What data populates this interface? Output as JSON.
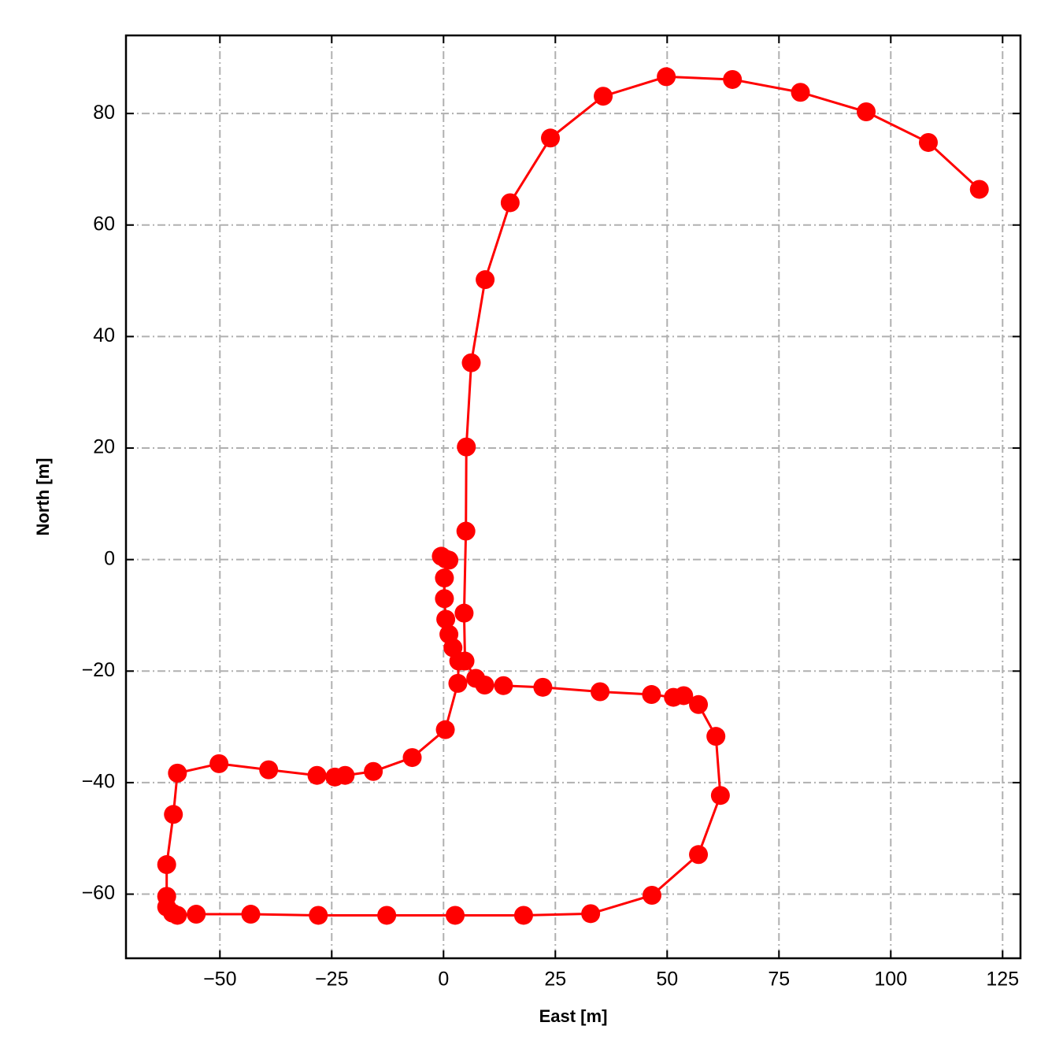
{
  "chart_data": {
    "type": "line",
    "xlabel": "East [m]",
    "ylabel": "North [m]",
    "x": [
      -0.5,
      0.5,
      1.2,
      0.2,
      0.2,
      0.5,
      1.2,
      2.1,
      3.4,
      3.2,
      0.4,
      -7.0,
      -15.7,
      -22.0,
      -24.3,
      -28.3,
      -39.1,
      -50.2,
      -59.5,
      -60.4,
      -61.9,
      -61.9,
      -61.9,
      -60.6,
      -59.5,
      -55.3,
      -43.1,
      -28.0,
      -12.7,
      2.6,
      17.9,
      32.9,
      46.6,
      57.0,
      61.9,
      60.9,
      57.0,
      53.7,
      51.4,
      46.5,
      35.0,
      22.2,
      13.4,
      9.2,
      7.2,
      4.8,
      4.6,
      5.0,
      5.1,
      6.2,
      9.3,
      14.9,
      23.9,
      35.7,
      49.8,
      64.6,
      79.8,
      94.5,
      108.4,
      119.8
    ],
    "values": [
      0.6,
      0.1,
      -0.1,
      -3.3,
      -7.0,
      -10.7,
      -13.4,
      -15.8,
      -18.2,
      -22.2,
      -30.5,
      -35.5,
      -38.0,
      -38.7,
      -39.0,
      -38.7,
      -37.7,
      -36.6,
      -38.3,
      -45.7,
      -54.7,
      -60.4,
      -62.3,
      -63.4,
      -63.8,
      -63.6,
      -63.6,
      -63.8,
      -63.8,
      -63.8,
      -63.8,
      -63.5,
      -60.2,
      -52.9,
      -42.3,
      -31.7,
      -26.0,
      -24.4,
      -24.7,
      -24.2,
      -23.7,
      -22.9,
      -22.6,
      -22.5,
      -21.3,
      -18.2,
      -9.6,
      5.1,
      20.2,
      35.3,
      50.2,
      64.0,
      75.6,
      83.1,
      86.6,
      86.1,
      83.8,
      80.3,
      74.8,
      66.4
    ],
    "color": "#ff0000",
    "xlim": [
      -71,
      129
    ],
    "ylim": [
      -71.5,
      94
    ],
    "xticks": [
      {
        "value": -50,
        "label": "−50"
      },
      {
        "value": -25,
        "label": "−25"
      },
      0,
      25,
      50,
      75,
      100,
      125
    ],
    "yticks": [
      {
        "value": -60,
        "label": "−60"
      },
      {
        "value": -40,
        "label": "−40"
      },
      {
        "value": -20,
        "label": "−20"
      },
      0,
      20,
      40,
      60,
      80
    ],
    "grid": true
  }
}
